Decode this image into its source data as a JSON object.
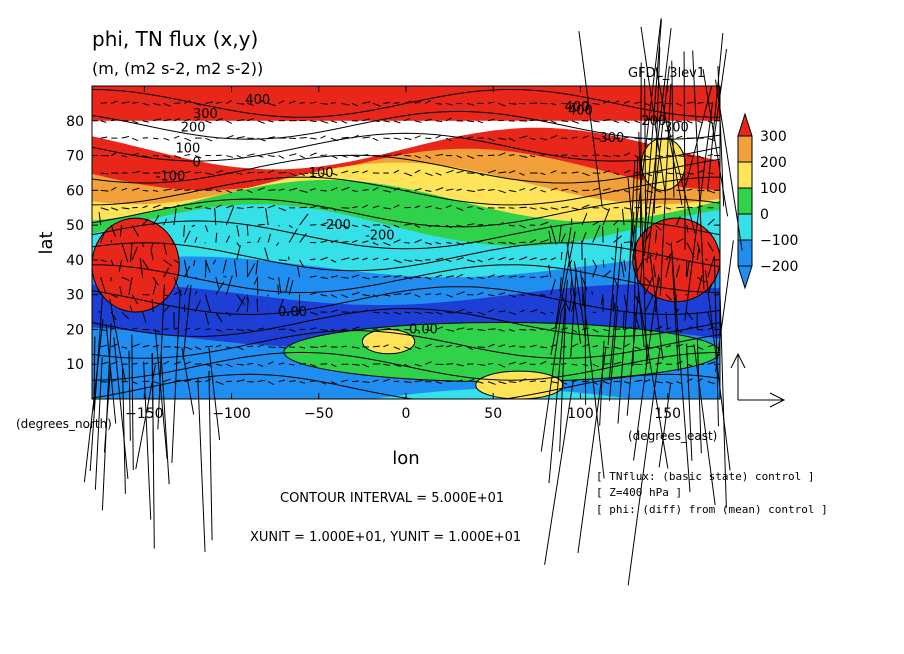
{
  "chart_data": {
    "type": "heatmap",
    "title": "phi, TN flux (x,y)",
    "subtitle": "(m, (m2 s-2, m2 s-2))",
    "model_label": "GFDL_3lev1",
    "xlabel": "lon",
    "ylabel": "lat",
    "x_unit_label": "(degrees_east)",
    "y_unit_label": "(degrees_north)",
    "xlim": [
      -180,
      180
    ],
    "ylim": [
      0,
      90
    ],
    "x_ticks": [
      "-150",
      "-100",
      "-50",
      "0",
      "50",
      "100",
      "150"
    ],
    "y_ticks": [
      "10",
      "20",
      "30",
      "40",
      "50",
      "60",
      "70",
      "80"
    ],
    "colorbar": {
      "labels": [
        "300",
        "200",
        "100",
        "0",
        "−100",
        "−200"
      ],
      "colors": [
        "#f2a13a",
        "#ffe45a",
        "#30d24a",
        "#35e0e8",
        "#1f8ef0"
      ],
      "over_color": "#e8261a",
      "under_color": "#1f8ef0"
    },
    "contour_labels": [
      "400",
      "300",
      "200",
      "100",
      "0",
      "-100",
      "300",
      "400",
      "400",
      "300",
      "200",
      "-200",
      "-200",
      "-100",
      "0.00",
      "0.00"
    ],
    "bands": [
      {
        "from_lat": 72,
        "color": "#e8261a"
      },
      {
        "from_lat": 66,
        "color": "#f2a13a"
      },
      {
        "from_lat": 62,
        "color": "#ffe45a"
      },
      {
        "from_lat": 57,
        "color": "#30d24a"
      },
      {
        "from_lat": 50,
        "color": "#35e0e8"
      },
      {
        "from_lat": 38,
        "color": "#1f8ef0"
      },
      {
        "from_lat": 30,
        "color": "#1d3fd6"
      },
      {
        "from_lat": 18,
        "color": "#1f8ef0"
      },
      {
        "from_lat": 0,
        "color": "#35e0e8"
      }
    ],
    "features": [
      {
        "name": "green-band",
        "lon": [
          -70,
          180
        ],
        "lat": [
          5,
          22
        ],
        "color": "#30d24a"
      },
      {
        "name": "yellow-blob-tropics",
        "lon": [
          -25,
          5
        ],
        "lat": [
          13,
          20
        ],
        "color": "#ffe45a"
      },
      {
        "name": "yellow-blob-south",
        "lon": [
          40,
          90
        ],
        "lat": [
          0,
          8
        ],
        "color": "#ffe45a"
      },
      {
        "name": "red-blob-west",
        "lon": [
          -180,
          -130
        ],
        "lat": [
          25,
          52
        ],
        "color": "#e8261a"
      },
      {
        "name": "red-blob-east",
        "lon": [
          130,
          180
        ],
        "lat": [
          28,
          52
        ],
        "color": "#e8261a"
      },
      {
        "name": "yellow-blob-north",
        "lon": [
          135,
          160
        ],
        "lat": [
          60,
          75
        ],
        "color": "#ffe45a"
      }
    ],
    "annotations": [
      "CONTOUR INTERVAL = 5.000E+01",
      "XUNIT = 1.000E+01, YUNIT = 1.000E+01"
    ],
    "legend_lines": [
      "[ TNflux: (basic state) control ]",
      "[ Z=400 hPa ]",
      "[ phi: (diff) from (mean) control ]"
    ]
  }
}
